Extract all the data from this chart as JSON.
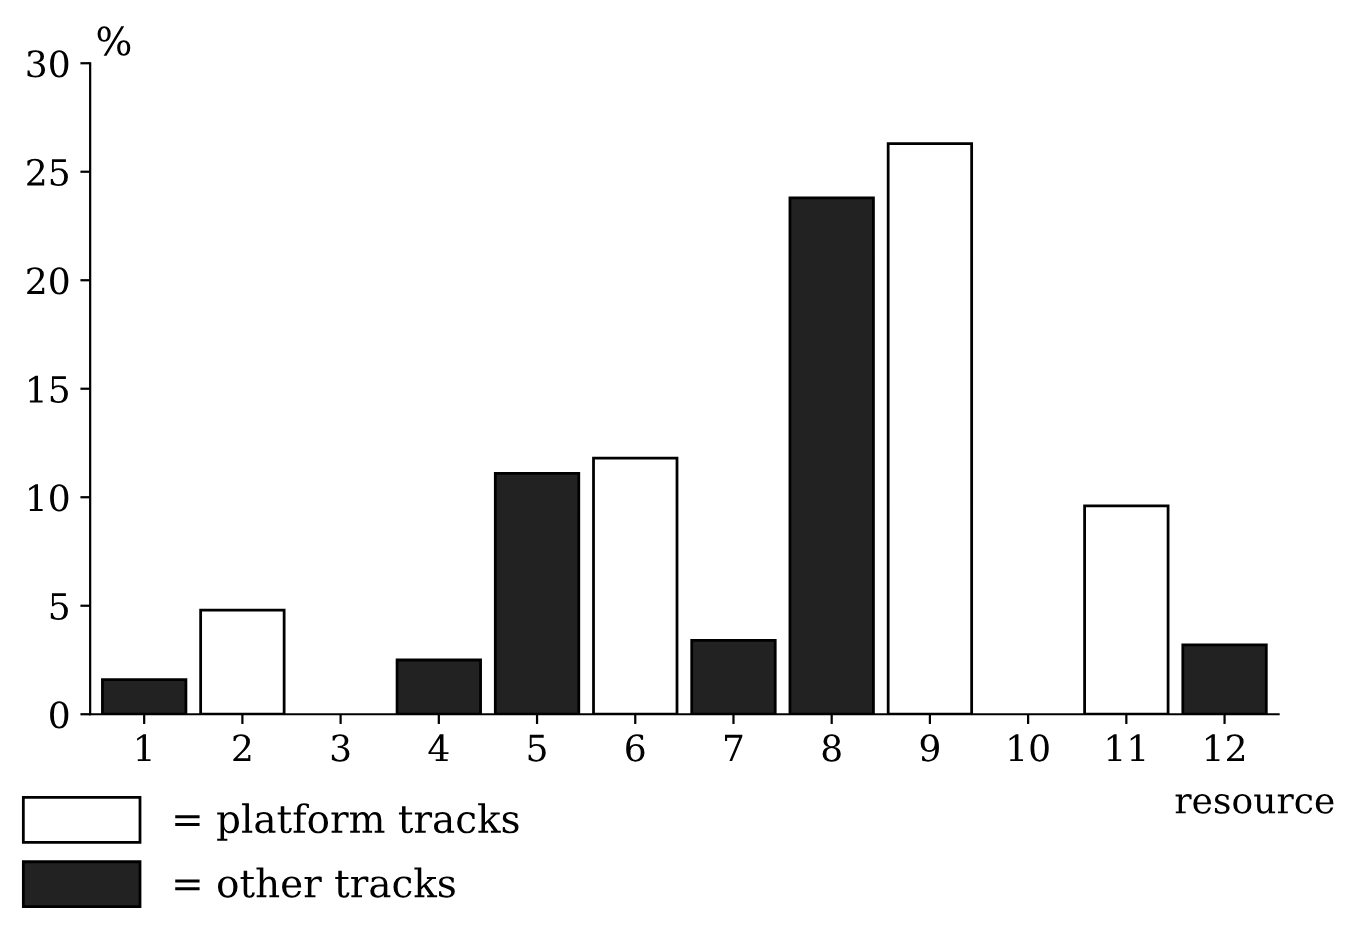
{
  "chart_data": {
    "type": "bar",
    "ylabel": "%",
    "xlabel": "resource",
    "categories": [
      "1",
      "2",
      "3",
      "4",
      "5",
      "6",
      "7",
      "8",
      "9",
      "10",
      "11",
      "12"
    ],
    "series": [
      {
        "name": "= platform tracks",
        "color": "#ffffff",
        "values": [
          null,
          4.8,
          null,
          null,
          null,
          11.8,
          null,
          null,
          26.3,
          null,
          9.6,
          null
        ]
      },
      {
        "name": "= other tracks",
        "color": "#222222",
        "values": [
          1.6,
          null,
          null,
          2.5,
          11.1,
          null,
          3.4,
          23.8,
          null,
          null,
          null,
          3.2
        ]
      }
    ],
    "ylim": [
      0,
      30
    ],
    "yticks": [
      0,
      5,
      10,
      15,
      20,
      25,
      30
    ],
    "grid": false,
    "legend": "bottom left"
  }
}
